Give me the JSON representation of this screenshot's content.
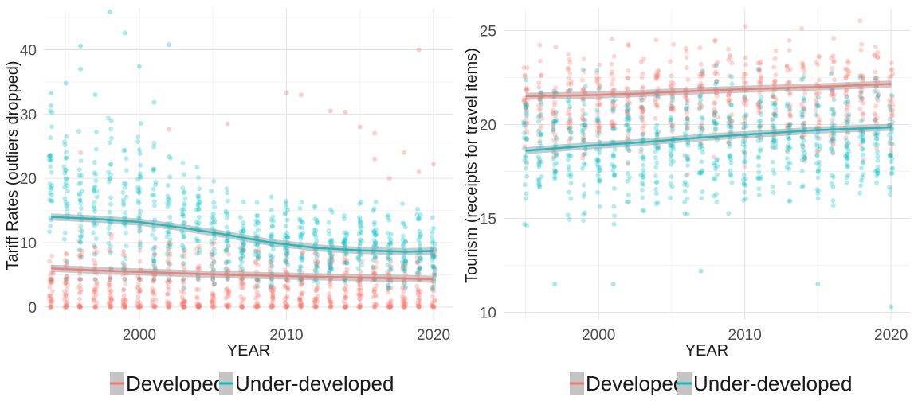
{
  "colors": {
    "developed": "#F8766D",
    "underdeveloped": "#00BFC4",
    "band": "#9e9e9e"
  },
  "chart_data": [
    {
      "type": "scatter",
      "ylabel": "Tariff Rates (outliers dropped)",
      "xlabel": "YEAR",
      "xlim": [
        1993.5,
        2021.3
      ],
      "ylim": [
        -2,
        46.5
      ],
      "xticks": [
        2000,
        2010,
        2020
      ],
      "yticks": [
        0,
        10,
        20,
        30,
        40
      ],
      "legend": {
        "position": "bottom",
        "entries": [
          "Developed",
          "Under-developed"
        ]
      },
      "grid": true,
      "series": [
        {
          "name": "Developed",
          "color": "#F8766D",
          "cloud": [
            {
              "year": 1994,
              "lo": 0,
              "hi": 8
            },
            {
              "year": 1995,
              "lo": 0,
              "hi": 9
            },
            {
              "year": 1996,
              "lo": 0,
              "hi": 12
            },
            {
              "year": 1997,
              "lo": 0,
              "hi": 10
            },
            {
              "year": 1998,
              "lo": 0,
              "hi": 12
            },
            {
              "year": 1999,
              "lo": 0,
              "hi": 10
            },
            {
              "year": 2000,
              "lo": 0,
              "hi": 12
            },
            {
              "year": 2001,
              "lo": 0,
              "hi": 11
            },
            {
              "year": 2002,
              "lo": 0,
              "hi": 12
            },
            {
              "year": 2003,
              "lo": 0,
              "hi": 10
            },
            {
              "year": 2004,
              "lo": 0,
              "hi": 10
            },
            {
              "year": 2005,
              "lo": 0,
              "hi": 10
            },
            {
              "year": 2006,
              "lo": 0,
              "hi": 10
            },
            {
              "year": 2007,
              "lo": 0,
              "hi": 10
            },
            {
              "year": 2008,
              "lo": 0,
              "hi": 9
            },
            {
              "year": 2009,
              "lo": 0,
              "hi": 9
            },
            {
              "year": 2010,
              "lo": 0,
              "hi": 9
            },
            {
              "year": 2011,
              "lo": 0,
              "hi": 9
            },
            {
              "year": 2012,
              "lo": 0,
              "hi": 9
            },
            {
              "year": 2013,
              "lo": 0,
              "hi": 9
            },
            {
              "year": 2014,
              "lo": 0,
              "hi": 9
            },
            {
              "year": 2015,
              "lo": 0,
              "hi": 9
            },
            {
              "year": 2016,
              "lo": 0,
              "hi": 9
            },
            {
              "year": 2017,
              "lo": 0,
              "hi": 9
            },
            {
              "year": 2018,
              "lo": 0,
              "hi": 9
            },
            {
              "year": 2019,
              "lo": 0,
              "hi": 9
            },
            {
              "year": 2020,
              "lo": 0,
              "hi": 9
            }
          ],
          "outliers": [
            [
              1996,
              24
            ],
            [
              2002,
              27.6
            ],
            [
              2006,
              28.5
            ],
            [
              2010,
              33.3
            ],
            [
              2011,
              33.0
            ],
            [
              2013,
              30.5
            ],
            [
              2014,
              30.3
            ],
            [
              2015,
              28.0
            ],
            [
              2016,
              27.0
            ],
            [
              2016,
              23.0
            ],
            [
              2017,
              20.0
            ],
            [
              2018,
              24.0
            ],
            [
              2019,
              40.0
            ],
            [
              2019,
              21.0
            ],
            [
              2020,
              22.2
            ]
          ],
          "trend": [
            [
              1994,
              6.0
            ],
            [
              1998,
              5.6
            ],
            [
              2002,
              5.3
            ],
            [
              2006,
              5.0
            ],
            [
              2010,
              4.8
            ],
            [
              2014,
              4.6
            ],
            [
              2017,
              4.5
            ],
            [
              2020,
              4.3
            ]
          ]
        },
        {
          "name": "Under-developed",
          "color": "#00BFC4",
          "cloud": [
            {
              "year": 1994,
              "lo": 4,
              "hi": 33
            },
            {
              "year": 1995,
              "lo": 2,
              "hi": 35
            },
            {
              "year": 1996,
              "lo": 2,
              "hi": 30
            },
            {
              "year": 1997,
              "lo": 2,
              "hi": 32
            },
            {
              "year": 1998,
              "lo": 2,
              "hi": 33
            },
            {
              "year": 1999,
              "lo": 2,
              "hi": 30
            },
            {
              "year": 2000,
              "lo": 1,
              "hi": 33
            },
            {
              "year": 2001,
              "lo": 1,
              "hi": 30
            },
            {
              "year": 2002,
              "lo": 1,
              "hi": 29
            },
            {
              "year": 2003,
              "lo": 1,
              "hi": 26
            },
            {
              "year": 2004,
              "lo": 1,
              "hi": 26
            },
            {
              "year": 2005,
              "lo": 1,
              "hi": 23
            },
            {
              "year": 2006,
              "lo": 1,
              "hi": 20
            },
            {
              "year": 2007,
              "lo": 1,
              "hi": 19
            },
            {
              "year": 2008,
              "lo": 1,
              "hi": 20
            },
            {
              "year": 2009,
              "lo": 1,
              "hi": 19
            },
            {
              "year": 2010,
              "lo": 1,
              "hi": 20
            },
            {
              "year": 2011,
              "lo": 1,
              "hi": 19
            },
            {
              "year": 2012,
              "lo": 1,
              "hi": 19
            },
            {
              "year": 2013,
              "lo": 1,
              "hi": 19
            },
            {
              "year": 2014,
              "lo": 1,
              "hi": 18
            },
            {
              "year": 2015,
              "lo": 1,
              "hi": 18
            },
            {
              "year": 2016,
              "lo": 1,
              "hi": 18
            },
            {
              "year": 2017,
              "lo": 1,
              "hi": 18
            },
            {
              "year": 2018,
              "lo": 1,
              "hi": 18
            },
            {
              "year": 2019,
              "lo": 1,
              "hi": 18
            },
            {
              "year": 2020,
              "lo": 1,
              "hi": 16
            }
          ],
          "outliers": [
            [
              1994,
              33.2
            ],
            [
              1994,
              31.3
            ],
            [
              1995,
              34.8
            ],
            [
              1996,
              40.6
            ],
            [
              1996,
              37.0
            ],
            [
              1998,
              45.9
            ],
            [
              1999,
              42.6
            ],
            [
              2000,
              37.4
            ],
            [
              2002,
              40.8
            ],
            [
              2001,
              31.8
            ],
            [
              1997,
              33.0
            ]
          ],
          "trend": [
            [
              1994,
              14.0
            ],
            [
              1997,
              13.7
            ],
            [
              2000,
              13.2
            ],
            [
              2003,
              12.3
            ],
            [
              2006,
              11.2
            ],
            [
              2009,
              10.0
            ],
            [
              2012,
              9.2
            ],
            [
              2015,
              8.8
            ],
            [
              2018,
              8.6
            ],
            [
              2020,
              8.7
            ]
          ]
        }
      ]
    },
    {
      "type": "scatter",
      "ylabel": "Tourism (receipts for travel items)",
      "xlabel": "YEAR",
      "xlim": [
        1993.5,
        2021.3
      ],
      "ylim": [
        9.6,
        26.2
      ],
      "xticks": [
        2000,
        2010,
        2020
      ],
      "yticks": [
        10,
        15,
        20,
        25
      ],
      "legend": {
        "position": "bottom",
        "entries": [
          "Developed",
          "Under-developed"
        ]
      },
      "grid": true,
      "series": [
        {
          "name": "Developed",
          "color": "#F8766D",
          "cloud": [
            {
              "year": 1995,
              "lo": 17,
              "hi": 25
            },
            {
              "year": 1996,
              "lo": 17,
              "hi": 25.1
            },
            {
              "year": 1997,
              "lo": 17,
              "hi": 25.1
            },
            {
              "year": 1998,
              "lo": 17,
              "hi": 25.2
            },
            {
              "year": 1999,
              "lo": 17,
              "hi": 25.2
            },
            {
              "year": 2000,
              "lo": 17,
              "hi": 25.3
            },
            {
              "year": 2001,
              "lo": 17,
              "hi": 25.2
            },
            {
              "year": 2002,
              "lo": 17,
              "hi": 25.3
            },
            {
              "year": 2003,
              "lo": 17,
              "hi": 25.3
            },
            {
              "year": 2004,
              "lo": 17,
              "hi": 25.3
            },
            {
              "year": 2005,
              "lo": 17,
              "hi": 25.4
            },
            {
              "year": 2006,
              "lo": 17,
              "hi": 25.4
            },
            {
              "year": 2007,
              "lo": 17,
              "hi": 25.5
            },
            {
              "year": 2008,
              "lo": 17,
              "hi": 25.5
            },
            {
              "year": 2009,
              "lo": 17,
              "hi": 25.6
            },
            {
              "year": 2010,
              "lo": 17,
              "hi": 25.6
            },
            {
              "year": 2011,
              "lo": 17,
              "hi": 25.7
            },
            {
              "year": 2012,
              "lo": 17,
              "hi": 25.8
            },
            {
              "year": 2013,
              "lo": 17,
              "hi": 25.8
            },
            {
              "year": 2014,
              "lo": 17,
              "hi": 25.9
            },
            {
              "year": 2015,
              "lo": 17,
              "hi": 25.9
            },
            {
              "year": 2016,
              "lo": 17,
              "hi": 25.9
            },
            {
              "year": 2017,
              "lo": 17,
              "hi": 26.0
            },
            {
              "year": 2018,
              "lo": 17,
              "hi": 26.0
            },
            {
              "year": 2019,
              "lo": 17,
              "hi": 26.0
            },
            {
              "year": 2020,
              "lo": 17,
              "hi": 25.0
            }
          ],
          "outliers": [],
          "trend": [
            [
              1995,
              21.5
            ],
            [
              1999,
              21.55
            ],
            [
              2003,
              21.65
            ],
            [
              2007,
              21.8
            ],
            [
              2011,
              21.9
            ],
            [
              2015,
              22.0
            ],
            [
              2020,
              22.15
            ]
          ]
        },
        {
          "name": "Under-developed",
          "color": "#00BFC4",
          "cloud": [
            {
              "year": 1995,
              "lo": 13.7,
              "hi": 24
            },
            {
              "year": 1996,
              "lo": 14,
              "hi": 24
            },
            {
              "year": 1997,
              "lo": 14,
              "hi": 24
            },
            {
              "year": 1998,
              "lo": 13,
              "hi": 24
            },
            {
              "year": 1999,
              "lo": 13.5,
              "hi": 24
            },
            {
              "year": 2000,
              "lo": 14,
              "hi": 24
            },
            {
              "year": 2001,
              "lo": 13.3,
              "hi": 24
            },
            {
              "year": 2002,
              "lo": 13.5,
              "hi": 24
            },
            {
              "year": 2003,
              "lo": 13.2,
              "hi": 24
            },
            {
              "year": 2004,
              "lo": 13.8,
              "hi": 24
            },
            {
              "year": 2005,
              "lo": 14,
              "hi": 24
            },
            {
              "year": 2006,
              "lo": 14,
              "hi": 24
            },
            {
              "year": 2007,
              "lo": 13.8,
              "hi": 24
            },
            {
              "year": 2008,
              "lo": 14,
              "hi": 24
            },
            {
              "year": 2009,
              "lo": 14,
              "hi": 24
            },
            {
              "year": 2010,
              "lo": 14.3,
              "hi": 24
            },
            {
              "year": 2011,
              "lo": 14,
              "hi": 24
            },
            {
              "year": 2012,
              "lo": 14.5,
              "hi": 24
            },
            {
              "year": 2013,
              "lo": 14,
              "hi": 24
            },
            {
              "year": 2014,
              "lo": 14.5,
              "hi": 24
            },
            {
              "year": 2015,
              "lo": 14.3,
              "hi": 24
            },
            {
              "year": 2016,
              "lo": 14.5,
              "hi": 24
            },
            {
              "year": 2017,
              "lo": 14.8,
              "hi": 24
            },
            {
              "year": 2018,
              "lo": 14.6,
              "hi": 24
            },
            {
              "year": 2019,
              "lo": 14.5,
              "hi": 24
            },
            {
              "year": 2020,
              "lo": 14.0,
              "hi": 24
            }
          ],
          "outliers": [
            [
              1997,
              11.5
            ],
            [
              2001,
              11.5
            ],
            [
              2007,
              12.2
            ],
            [
              2015,
              11.5
            ],
            [
              2020,
              10.3
            ]
          ],
          "trend": [
            [
              1995,
              18.6
            ],
            [
              1999,
              18.85
            ],
            [
              2003,
              19.05
            ],
            [
              2007,
              19.3
            ],
            [
              2011,
              19.5
            ],
            [
              2015,
              19.7
            ],
            [
              2020,
              19.85
            ]
          ]
        }
      ]
    }
  ]
}
